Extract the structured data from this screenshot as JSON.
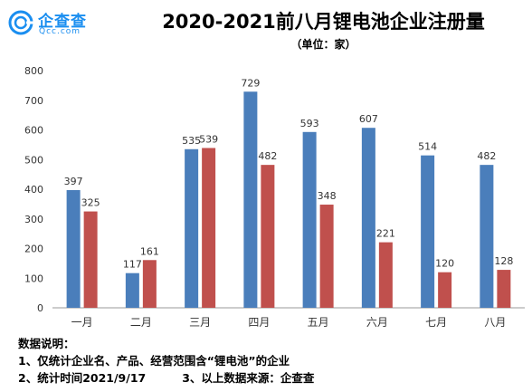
{
  "logo": {
    "name": "企查查",
    "domain": "Qcc.com",
    "accent": "#1a8ef0"
  },
  "chart_data": {
    "type": "bar",
    "title": "2020-2021前八月锂电池企业注册量",
    "subtitle": "（单位：家）",
    "xlabel": "",
    "ylabel": "",
    "categories": [
      "一月",
      "二月",
      "三月",
      "四月",
      "五月",
      "六月",
      "七月",
      "八月"
    ],
    "series": [
      {
        "values": [
          397,
          117,
          535,
          729,
          593,
          607,
          514,
          482
        ],
        "color": "#4a7ebb"
      },
      {
        "values": [
          325,
          161,
          539,
          482,
          348,
          221,
          120,
          128
        ],
        "color": "#c0504d"
      }
    ],
    "ylim": [
      0,
      800
    ],
    "yticks": [
      0,
      100,
      200,
      300,
      400,
      500,
      600,
      700,
      800
    ],
    "grid": false,
    "legend": "none"
  },
  "notes": {
    "heading": "数据说明：",
    "line1": "1、仅统计企业名、产品、经营范围含“锂电池”的企业",
    "line2a": "2、统计时间2021/9/17",
    "line2b": "3、以上数据来源：企查查"
  }
}
